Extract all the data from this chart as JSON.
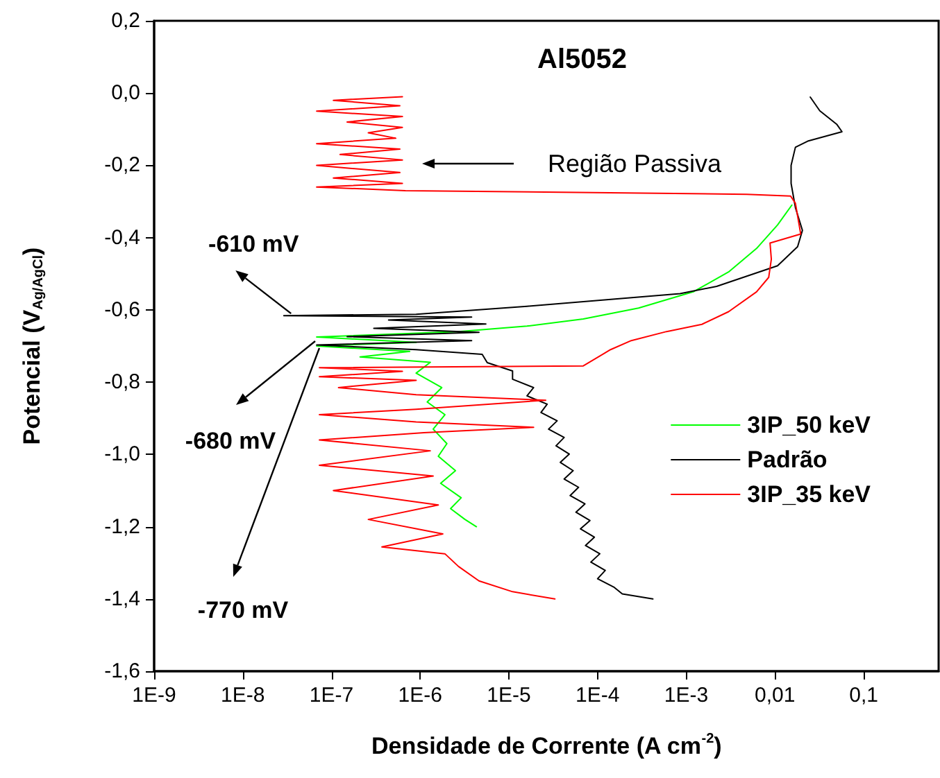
{
  "chart_data": {
    "type": "line",
    "title": "Al5052",
    "xlabel": "Densidade de Corrente (A cm$^{-2}$)",
    "ylabel": "Potencial (V$_{Ag/AgCl}$)",
    "log": "x",
    "xlim": [
      1e-09,
      0.7
    ],
    "ylim": [
      -1.6,
      0.2
    ],
    "xticks": [
      {
        "value": 1e-09,
        "label": "1E-9"
      },
      {
        "value": 1e-08,
        "label": "1E-8"
      },
      {
        "value": 1e-07,
        "label": "1E-7"
      },
      {
        "value": 1e-06,
        "label": "1E-6"
      },
      {
        "value": 1e-05,
        "label": "1E-5"
      },
      {
        "value": 0.0001,
        "label": "1E-4"
      },
      {
        "value": 0.001,
        "label": "1E-3"
      },
      {
        "value": 0.01,
        "label": "0,01"
      },
      {
        "value": 0.1,
        "label": "0,1"
      }
    ],
    "yticks": [
      {
        "value": -1.6,
        "label": "-1,6"
      },
      {
        "value": -1.4,
        "label": "-1,4"
      },
      {
        "value": -1.2,
        "label": "-1,2"
      },
      {
        "value": -1.0,
        "label": "-1,0"
      },
      {
        "value": -0.8,
        "label": "-0,8"
      },
      {
        "value": -0.6,
        "label": "-0,6"
      },
      {
        "value": -0.4,
        "label": "-0,4"
      },
      {
        "value": -0.2,
        "label": "-0,2"
      },
      {
        "value": 0.0,
        "label": "0,0"
      },
      {
        "value": 0.2,
        "label": "0,2"
      }
    ],
    "grid": false,
    "legend": "right",
    "marker": "none",
    "line_style": "solid",
    "annotations": [
      "Região Passiva",
      {
        "text": "-610 mV",
        "x": 3.5e-08,
        "y": -0.61
      },
      "-680 mV",
      "-770 mV"
    ],
    "series": [
      {
        "name": "3IP_50 keV",
        "color": "#00ff00",
        "x": [
          4.3e-06,
          3.2e-06,
          2.2e-06,
          2.9e-06,
          1.7e-06,
          2.5e-06,
          1.6e-06,
          2e-06,
          1.4e-06,
          1.9e-06,
          1.2e-06,
          1.75e-06,
          9e-07,
          1.3e-06,
          2.1e-07,
          7.6e-07,
          6.8e-08,
          9e-07,
          6.8e-08,
          2.7e-06,
          1.6e-05,
          6.9e-05,
          0.00029,
          0.0012,
          0.003,
          0.0062,
          0.0107,
          0.0155
        ],
        "values": [
          -1.2,
          -1.18,
          -1.15,
          -1.12,
          -1.08,
          -1.045,
          -1.005,
          -0.97,
          -0.93,
          -0.89,
          -0.855,
          -0.815,
          -0.775,
          -0.745,
          -0.73,
          -0.715,
          -0.7,
          -0.69,
          -0.675,
          -0.66,
          -0.645,
          -0.625,
          -0.595,
          -0.55,
          -0.495,
          -0.43,
          -0.365,
          -0.31
        ]
      },
      {
        "name": "Padrão",
        "color": "#000000",
        "x": [
          0.00042,
          0.00019,
          0.000152,
          0.0001,
          0.000122,
          8.4e-05,
          0.000106,
          7.3e-05,
          9.2e-05,
          6.4e-05,
          8.2e-05,
          5.7e-05,
          7.2e-05,
          4.9e-05,
          6.1e-05,
          4.2e-05,
          5.3e-05,
          3.8e-05,
          4.8e-05,
          3.4e-05,
          4.2e-05,
          2.8e-05,
          3.5e-05,
          2.3e-05,
          2.7e-05,
          1.6e-05,
          1.9e-05,
          1.1e-05,
          1.1e-05,
          5.7e-06,
          5e-06,
          9e-07,
          6.8e-08,
          3.8e-06,
          1.5e-07,
          4.6e-06,
          3e-07,
          5.5e-06,
          4.4e-07,
          3.8e-06,
          2.9e-08,
          9e-07,
          1.6e-05,
          0.00085,
          0.0022,
          0.0107,
          0.018,
          0.0204,
          0.017,
          0.0152,
          0.0152,
          0.017,
          0.0234,
          0.057,
          0.05,
          0.032,
          0.025
        ],
        "values": [
          -1.4,
          -1.386,
          -1.367,
          -1.344,
          -1.321,
          -1.298,
          -1.275,
          -1.252,
          -1.229,
          -1.206,
          -1.183,
          -1.16,
          -1.137,
          -1.114,
          -1.091,
          -1.068,
          -1.045,
          -1.022,
          -0.999,
          -0.976,
          -0.953,
          -0.93,
          -0.907,
          -0.884,
          -0.861,
          -0.838,
          -0.815,
          -0.792,
          -0.769,
          -0.746,
          -0.723,
          -0.71,
          -0.697,
          -0.685,
          -0.674,
          -0.662,
          -0.651,
          -0.639,
          -0.628,
          -0.62,
          -0.616,
          -0.612,
          -0.59,
          -0.555,
          -0.535,
          -0.478,
          -0.425,
          -0.38,
          -0.317,
          -0.25,
          -0.2,
          -0.15,
          -0.133,
          -0.107,
          -0.087,
          -0.049,
          -0.011
        ]
      },
      {
        "name": "3IP_35 keV",
        "color": "#ff0000",
        "x": [
          3.3e-05,
          1.1e-05,
          4.6e-06,
          2.7e-06,
          1.9e-06,
          3.7e-07,
          1.8e-06,
          2.6e-07,
          1.6e-06,
          1.05e-07,
          1.4e-06,
          7.3e-08,
          1.3e-06,
          7.3e-08,
          1.1e-06,
          1.9e-05,
          9e-07,
          7.3e-08,
          9e-07,
          2.6e-05,
          9e-07,
          1.2e-07,
          9e-07,
          7.3e-08,
          6.3e-07,
          7.3e-08,
          6.9e-05,
          0.00014,
          0.00024,
          0.0006,
          0.0015,
          0.003,
          0.0062,
          0.0085,
          0.0091,
          0.0088,
          0.0195,
          0.017,
          0.015,
          0.0048,
          6.8e-07,
          6.8e-08,
          6.3e-07,
          1.05e-07,
          5.9e-07,
          6.8e-08,
          6.3e-07,
          1.25e-07,
          5.9e-07,
          6.8e-08,
          5.3e-07,
          2.6e-07,
          6.3e-07,
          1.5e-07,
          6.3e-07,
          6.8e-08,
          5.9e-07,
          1.05e-07,
          6.3e-07
        ],
        "values": [
          -1.4,
          -1.38,
          -1.35,
          -1.31,
          -1.275,
          -1.256,
          -1.22,
          -1.18,
          -1.14,
          -1.1,
          -1.06,
          -1.03,
          -0.99,
          -0.96,
          -0.94,
          -0.925,
          -0.91,
          -0.89,
          -0.875,
          -0.85,
          -0.835,
          -0.815,
          -0.795,
          -0.785,
          -0.77,
          -0.76,
          -0.755,
          -0.71,
          -0.685,
          -0.66,
          -0.64,
          -0.605,
          -0.55,
          -0.51,
          -0.46,
          -0.415,
          -0.39,
          -0.305,
          -0.285,
          -0.28,
          -0.27,
          -0.26,
          -0.25,
          -0.235,
          -0.22,
          -0.2,
          -0.185,
          -0.17,
          -0.155,
          -0.14,
          -0.125,
          -0.11,
          -0.095,
          -0.08,
          -0.065,
          -0.05,
          -0.035,
          -0.02,
          -0.01
        ]
      }
    ]
  }
}
